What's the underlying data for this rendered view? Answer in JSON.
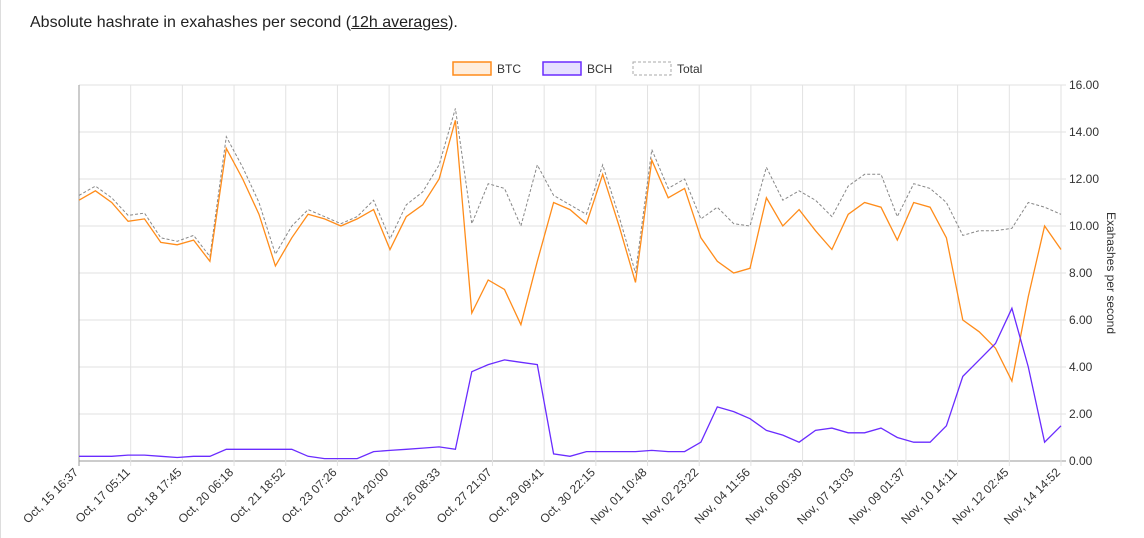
{
  "caption": {
    "prefix": "Absolute hashrate in exahashes per second (",
    "link": "12h averages",
    "suffix": ")."
  },
  "chart_data": {
    "type": "line",
    "title": "",
    "xlabel": "",
    "ylabel": "Exahashes per second",
    "ylim": [
      0,
      16
    ],
    "y_ticks": [
      "0.00",
      "2.00",
      "4.00",
      "6.00",
      "8.00",
      "10.00",
      "12.00",
      "14.00",
      "16.00"
    ],
    "x_ticks": [
      "Oct, 15 16:37",
      "Oct, 17 05:11",
      "Oct, 18 17:45",
      "Oct, 20 06:18",
      "Oct, 21 18:52",
      "Oct, 23 07:26",
      "Oct, 24 20:00",
      "Oct, 26 08:33",
      "Oct, 27 21:07",
      "Oct, 29 09:41",
      "Oct, 30 22:15",
      "Nov, 01 10:48",
      "Nov, 02 23:22",
      "Nov, 04 11:56",
      "Nov, 06 00:30",
      "Nov, 07 13:03",
      "Nov, 09 01:37",
      "Nov, 10 14:11",
      "Nov, 12 02:45",
      "Nov, 14 14:52"
    ],
    "x_range": [
      "Oct, 15 16:37",
      "Nov, 14 14:52"
    ],
    "grid": true,
    "legend": "top-center",
    "series": [
      {
        "name": "BTC",
        "color": "#ff8c1a",
        "fill": "#ffeedd",
        "dashed": false,
        "values": [
          11.1,
          11.5,
          11.0,
          10.2,
          10.3,
          9.3,
          9.2,
          9.4,
          8.5,
          13.3,
          12.0,
          10.5,
          8.3,
          9.5,
          10.5,
          10.3,
          10.0,
          10.3,
          10.7,
          9.0,
          10.4,
          10.9,
          12.0,
          14.5,
          6.3,
          7.7,
          7.3,
          5.8,
          8.5,
          11.0,
          10.7,
          10.1,
          12.2,
          10.0,
          7.6,
          12.8,
          11.2,
          11.6,
          9.5,
          8.5,
          8.0,
          8.2,
          11.2,
          10.0,
          10.7,
          9.8,
          9.0,
          10.5,
          11.0,
          10.8,
          9.4,
          11.0,
          10.8,
          9.5,
          6.0,
          5.5,
          4.8,
          3.4,
          7.0,
          10.0,
          9.0
        ]
      },
      {
        "name": "BCH",
        "color": "#6a2cff",
        "fill": "#e6e0ff",
        "dashed": false,
        "values": [
          0.2,
          0.2,
          0.2,
          0.25,
          0.25,
          0.2,
          0.15,
          0.2,
          0.2,
          0.5,
          0.5,
          0.5,
          0.5,
          0.5,
          0.2,
          0.1,
          0.1,
          0.1,
          0.4,
          0.45,
          0.5,
          0.55,
          0.6,
          0.5,
          3.8,
          4.1,
          4.3,
          4.2,
          4.1,
          0.3,
          0.2,
          0.4,
          0.4,
          0.4,
          0.4,
          0.45,
          0.4,
          0.4,
          0.8,
          2.3,
          2.1,
          1.8,
          1.3,
          1.1,
          0.8,
          1.3,
          1.4,
          1.2,
          1.2,
          1.4,
          1.0,
          0.8,
          0.8,
          1.5,
          3.6,
          4.3,
          5.0,
          6.5,
          4.0,
          0.8,
          1.5
        ]
      },
      {
        "name": "Total",
        "color": "#888888",
        "fill": "#ffffff",
        "dashed": true,
        "values": [
          11.3,
          11.7,
          11.2,
          10.45,
          10.55,
          9.5,
          9.35,
          9.6,
          8.7,
          13.8,
          12.5,
          11.0,
          8.8,
          10.0,
          10.7,
          10.4,
          10.1,
          10.4,
          11.1,
          9.45,
          10.9,
          11.45,
          12.6,
          15.0,
          10.1,
          11.8,
          11.6,
          10.0,
          12.6,
          11.3,
          10.9,
          10.5,
          12.6,
          10.4,
          8.0,
          13.25,
          11.6,
          12.0,
          10.3,
          10.8,
          10.1,
          10.0,
          12.5,
          11.1,
          11.5,
          11.1,
          10.4,
          11.7,
          12.2,
          12.2,
          10.4,
          11.8,
          11.6,
          11.0,
          9.6,
          9.8,
          9.8,
          9.9,
          11.0,
          10.8,
          10.5
        ]
      }
    ]
  }
}
